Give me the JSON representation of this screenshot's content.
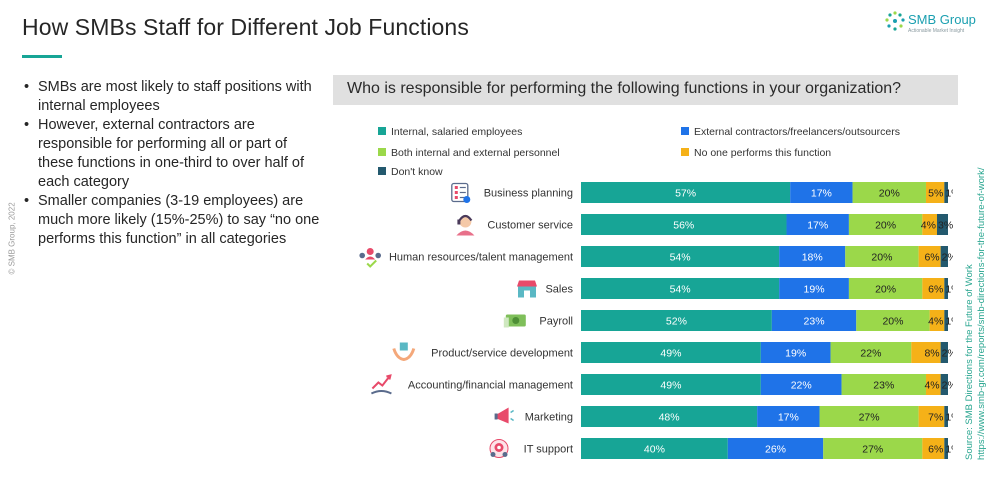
{
  "page": {
    "title": "How SMBs Staff for Different Job Functions",
    "copyright": "© SMB Group, 2022",
    "bullets": [
      "SMBs are most likely to staff positions with internal employees",
      "However, external contractors are responsible for performing all or part of these functions in one-third to over half of each category",
      "Smaller companies (3-19 employees) are much more likely  (15%-25%) to say “no one performs this function” in all categories"
    ],
    "question": "Who is responsible for performing the following functions in your organization?",
    "source_line1": "Source: SMB Directions for the Future of Work",
    "source_line2": "https://www.smb-gr.com/reports/smb-directions-for-the-future-of-work/"
  },
  "logo": {
    "name": "SMB Group",
    "tagline": "Actionable Market Insight"
  },
  "chart_data": {
    "type": "bar",
    "orientation": "horizontal",
    "stacked": true,
    "categories": [
      "Business planning",
      "Customer service",
      "Human resources/talent management",
      "Sales",
      "Payroll",
      "Product/service development",
      "Accounting/financial management",
      "Marketing",
      "IT support"
    ],
    "category_icons": [
      "checklist-icon",
      "customer-service-agent-icon",
      "people-network-icon",
      "shop-icon",
      "cash-icon",
      "hands-cube-icon",
      "rising-chart-hand-icon",
      "megaphone-icon",
      "gear-support-icon"
    ],
    "series": [
      {
        "name": "Internal, salaried employees",
        "color": "#17a596",
        "values": [
          57,
          56,
          54,
          54,
          52,
          49,
          49,
          48,
          40
        ]
      },
      {
        "name": "External contractors/freelancers/outsourcers",
        "color": "#1f73e8",
        "values": [
          17,
          17,
          18,
          19,
          23,
          19,
          22,
          17,
          26
        ]
      },
      {
        "name": "Both internal and external personnel",
        "color": "#9bd84a",
        "values": [
          20,
          20,
          20,
          20,
          20,
          22,
          23,
          27,
          27
        ]
      },
      {
        "name": "No one performs this function",
        "color": "#f5b118",
        "values": [
          5,
          4,
          6,
          6,
          4,
          8,
          4,
          7,
          6
        ]
      },
      {
        "name": "Don't know",
        "color": "#23596e",
        "values": [
          1,
          3,
          2,
          1,
          1,
          2,
          2,
          1,
          1
        ]
      }
    ],
    "value_labels": [
      [
        "57%",
        "17%",
        "20%",
        "5%",
        "1%"
      ],
      [
        "56%",
        "17%",
        "20%",
        "4%",
        "3%"
      ],
      [
        "54%",
        "18%",
        "20%",
        "6%",
        "2%"
      ],
      [
        "54%",
        "19%",
        "20%",
        "6%",
        "1%"
      ],
      [
        "52%",
        "23%",
        "20%",
        "4%",
        "1%"
      ],
      [
        "49%",
        "19%",
        "22%",
        "8%",
        "2%"
      ],
      [
        "49%",
        "22%",
        "23%",
        "4%",
        "2%"
      ],
      [
        "48%",
        "17%",
        "27%",
        "7%",
        "1%"
      ],
      [
        "40%",
        "26%",
        "27%",
        "6%",
        "1%"
      ]
    ],
    "xlim": [
      0,
      100
    ],
    "legend_position": "top"
  }
}
